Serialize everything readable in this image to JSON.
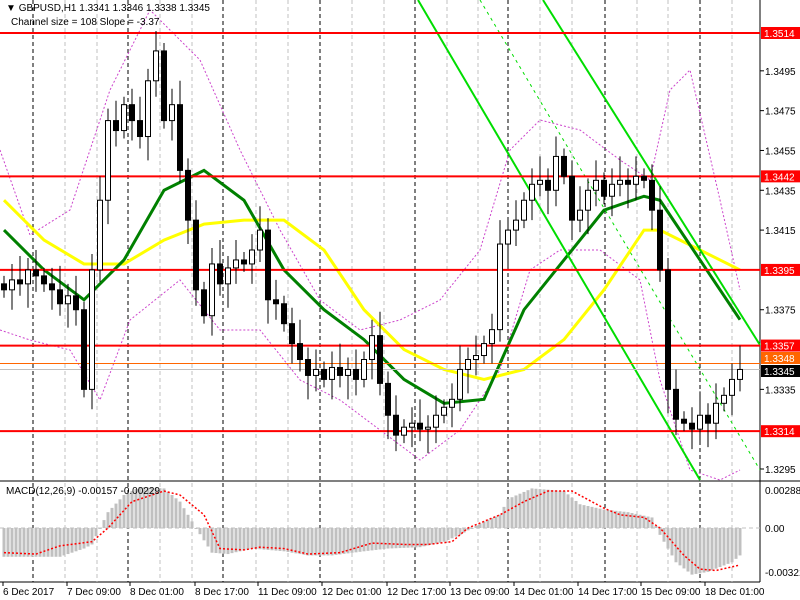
{
  "header": {
    "symbol_line": "GBPUSD,H1  1.3341 1.3346 1.3338 1.3345",
    "channel_line": "Channel size = 108 Slope = -3.37",
    "macd_line": "MACD(12,26,9) -0.00157 -0.00229"
  },
  "colors": {
    "level_line": "#ff0000",
    "ask_line": "#ff6600",
    "bid_line": "#c0c0c0",
    "channel": "#00dd00",
    "ma_fast": "#008000",
    "ma_slow": "#ffff00",
    "envelope": "#cc44cc",
    "macd_hist": "#c0c0c0",
    "macd_signal": "#ff0000"
  },
  "chart_data": [
    {
      "type": "candlestick",
      "title": "GBPUSD,H1",
      "ylim": [
        1.3285,
        1.353
      ],
      "y_ticks": [
        "1.3495",
        "1.3475",
        "1.3455",
        "1.3435",
        "1.3415",
        "1.3375",
        "1.3335",
        "1.3295"
      ],
      "x_ticks": [
        "6 Dec 2017",
        "7 Dec 09:00",
        "8 Dec 01:00",
        "8 Dec 17:00",
        "11 Dec 09:00",
        "12 Dec 01:00",
        "12 Dec 17:00",
        "13 Dec 09:00",
        "14 Dec 01:00",
        "14 Dec 17:00",
        "15 Dec 09:00",
        "18 Dec 01:00"
      ],
      "levels": [
        {
          "price": 1.3514,
          "label": "1.3514"
        },
        {
          "price": 1.3442,
          "label": "1.3442"
        },
        {
          "price": 1.3395,
          "label": "1.3395"
        },
        {
          "price": 1.3357,
          "label": "1.3357"
        },
        {
          "price": 1.3314,
          "label": "1.3314"
        }
      ],
      "ask": {
        "price": 1.3348,
        "label": "1.3348"
      },
      "bid": {
        "price": 1.3345,
        "label": "1.3345"
      },
      "closes": [
        1.3385,
        1.339,
        1.3388,
        1.3395,
        1.3392,
        1.3388,
        1.3385,
        1.3378,
        1.3382,
        1.3375,
        1.3335,
        1.3395,
        1.343,
        1.347,
        1.3465,
        1.3478,
        1.347,
        1.3462,
        1.349,
        1.3505,
        1.347,
        1.3478,
        1.3445,
        1.342,
        1.3385,
        1.3372,
        1.3398,
        1.3388,
        1.3396,
        1.34,
        1.3398,
        1.3405,
        1.3415,
        1.338,
        1.3378,
        1.3368,
        1.3358,
        1.335,
        1.3342,
        1.3345,
        1.334,
        1.3346,
        1.3342,
        1.3345,
        1.334,
        1.335,
        1.3362,
        1.3338,
        1.3322,
        1.3312,
        1.3316,
        1.3318,
        1.3315,
        1.3316,
        1.3322,
        1.3326,
        1.333,
        1.3345,
        1.335,
        1.3352,
        1.3358,
        1.3365,
        1.3408,
        1.3415,
        1.342,
        1.343,
        1.3438,
        1.344,
        1.3435,
        1.3452,
        1.3442,
        1.342,
        1.3425,
        1.3435,
        1.344,
        1.3432,
        1.3438,
        1.344,
        1.3438,
        1.3442,
        1.344,
        1.3425,
        1.3395,
        1.3335,
        1.332,
        1.3318,
        1.3315,
        1.3322,
        1.3318,
        1.3328,
        1.3332,
        1.334,
        1.3345
      ],
      "ma_fast": [
        [
          0,
          1.3415
        ],
        [
          5,
          1.3395
        ],
        [
          10,
          1.338
        ],
        [
          15,
          1.34
        ],
        [
          20,
          1.3435
        ],
        [
          25,
          1.3445
        ],
        [
          30,
          1.343
        ],
        [
          35,
          1.3395
        ],
        [
          40,
          1.3375
        ],
        [
          45,
          1.336
        ],
        [
          50,
          1.334
        ],
        [
          55,
          1.3328
        ],
        [
          60,
          1.333
        ],
        [
          65,
          1.3375
        ],
        [
          70,
          1.34
        ],
        [
          75,
          1.3425
        ],
        [
          80,
          1.3432
        ],
        [
          82,
          1.343
        ],
        [
          87,
          1.34
        ],
        [
          92,
          1.337
        ]
      ],
      "ma_slow": [
        [
          0,
          1.343
        ],
        [
          5,
          1.341
        ],
        [
          10,
          1.3398
        ],
        [
          15,
          1.3398
        ],
        [
          20,
          1.341
        ],
        [
          25,
          1.3418
        ],
        [
          30,
          1.342
        ],
        [
          35,
          1.342
        ],
        [
          40,
          1.3405
        ],
        [
          45,
          1.3375
        ],
        [
          50,
          1.3355
        ],
        [
          55,
          1.3345
        ],
        [
          60,
          1.334
        ],
        [
          65,
          1.3345
        ],
        [
          70,
          1.336
        ],
        [
          75,
          1.3385
        ],
        [
          80,
          1.3415
        ],
        [
          82,
          1.3415
        ],
        [
          87,
          1.3405
        ],
        [
          92,
          1.3395
        ]
      ]
    },
    {
      "type": "bar",
      "title": "MACD(12,26,9)",
      "ylim": [
        -0.0034,
        0.0031
      ],
      "y_ticks": [
        "0.00288",
        "0.00",
        "-0.00321"
      ],
      "histogram": [
        [
          0,
          -0.0021
        ],
        [
          7,
          -0.0021
        ],
        [
          10,
          -0.0015
        ],
        [
          11,
          -0.0012
        ],
        [
          12,
          0.0
        ],
        [
          13,
          0.0012
        ],
        [
          15,
          0.0025
        ],
        [
          17,
          0.0031
        ],
        [
          20,
          0.003
        ],
        [
          22,
          0.002
        ],
        [
          24,
          0.0
        ],
        [
          26,
          -0.0018
        ],
        [
          28,
          -0.0019
        ],
        [
          31,
          -0.0015
        ],
        [
          35,
          -0.0017
        ],
        [
          38,
          -0.002
        ],
        [
          41,
          -0.002
        ],
        [
          45,
          -0.0017
        ],
        [
          48,
          -0.0015
        ],
        [
          52,
          -0.0014
        ],
        [
          55,
          -0.001
        ],
        [
          57,
          -0.0005
        ],
        [
          60,
          0.0005
        ],
        [
          62,
          0.001
        ],
        [
          63,
          0.0022
        ],
        [
          66,
          0.003
        ],
        [
          70,
          0.0028
        ],
        [
          72,
          0.0018
        ],
        [
          75,
          0.0014
        ],
        [
          78,
          0.0012
        ],
        [
          81,
          0.0008
        ],
        [
          82,
          -0.0005
        ],
        [
          84,
          -0.0025
        ],
        [
          86,
          -0.0034
        ],
        [
          88,
          -0.0032
        ],
        [
          91,
          -0.0025
        ],
        [
          92,
          -0.002
        ]
      ],
      "signal": [
        [
          0,
          -0.0018
        ],
        [
          4,
          -0.0019
        ],
        [
          7,
          -0.0013
        ],
        [
          11,
          -0.001
        ],
        [
          13,
          0.0
        ],
        [
          16,
          0.002
        ],
        [
          20,
          0.0028
        ],
        [
          22,
          0.0025
        ],
        [
          25,
          0.001
        ],
        [
          27,
          -0.0015
        ],
        [
          30,
          -0.0016
        ],
        [
          32,
          -0.0014
        ],
        [
          35,
          -0.0015
        ],
        [
          38,
          -0.0019
        ],
        [
          42,
          -0.0018
        ],
        [
          46,
          -0.0011
        ],
        [
          50,
          -0.0012
        ],
        [
          53,
          -0.0012
        ],
        [
          56,
          -0.001
        ],
        [
          58,
          0.0
        ],
        [
          62,
          0.001
        ],
        [
          65,
          0.002
        ],
        [
          68,
          0.0028
        ],
        [
          71,
          0.0028
        ],
        [
          75,
          0.0015
        ],
        [
          77,
          0.001
        ],
        [
          80,
          0.0008
        ],
        [
          82,
          0.0
        ],
        [
          85,
          -0.002
        ],
        [
          87,
          -0.003
        ],
        [
          89,
          -0.0031
        ],
        [
          92,
          -0.0027
        ]
      ]
    }
  ]
}
